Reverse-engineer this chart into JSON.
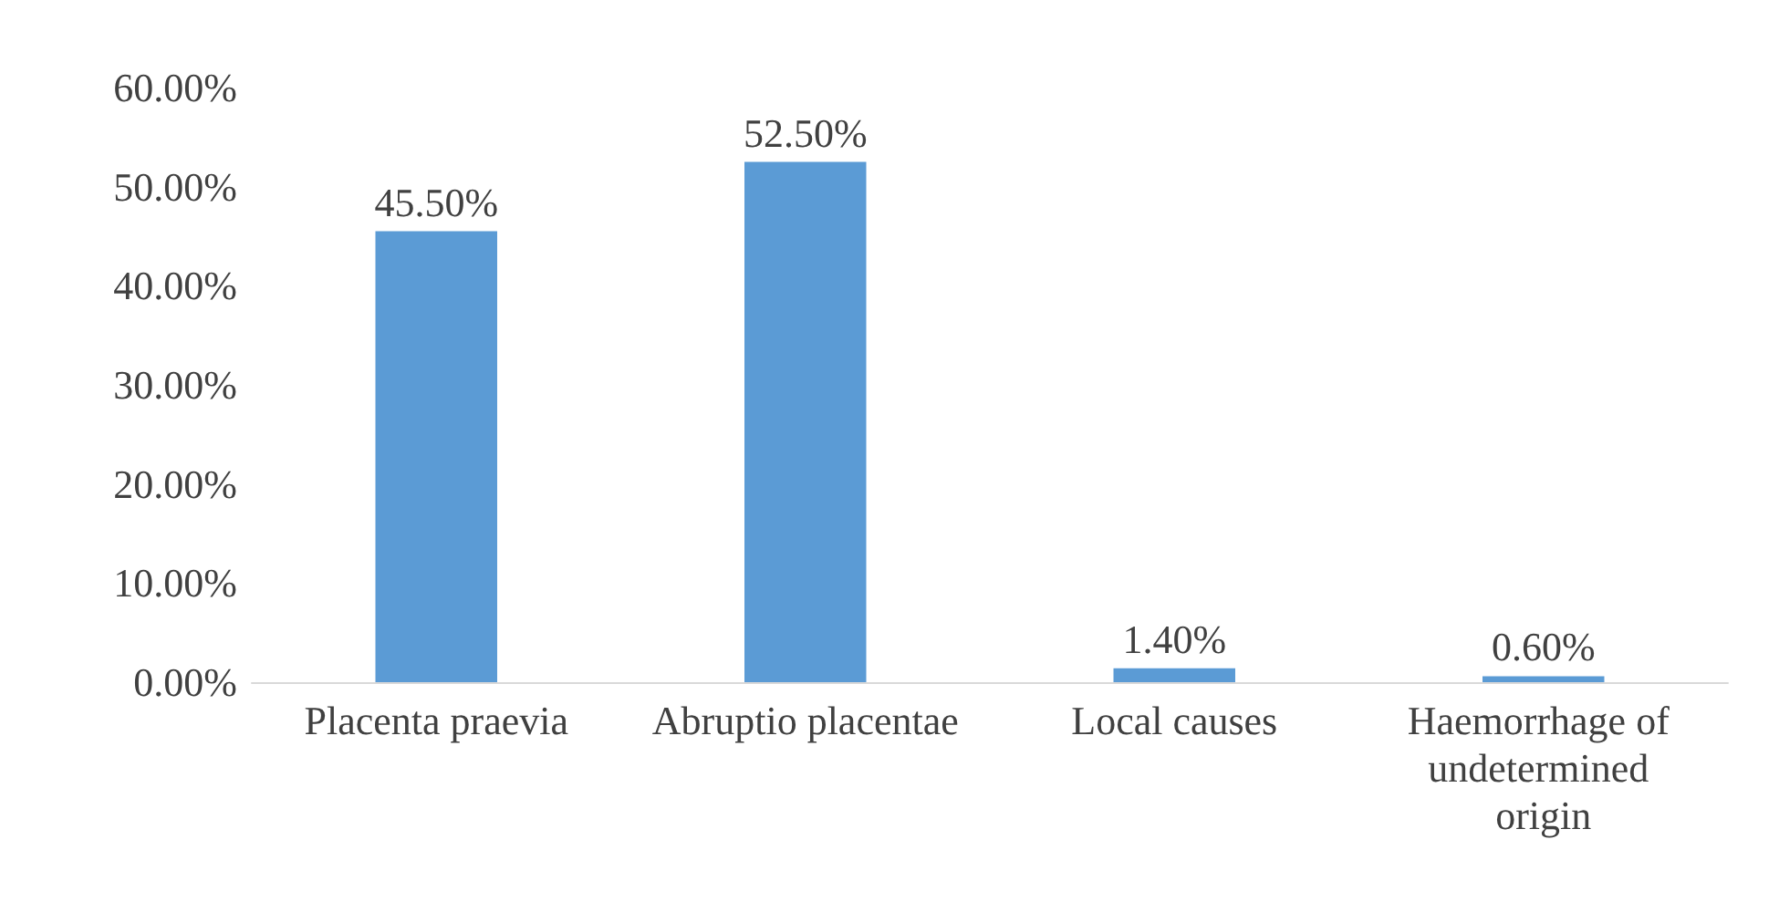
{
  "chart_data": {
    "type": "bar",
    "categories": [
      "Placenta praevia",
      "Abruptio placentae",
      "Local causes",
      "Haemorrhage of undetermined origin"
    ],
    "values": [
      45.5,
      52.5,
      1.4,
      0.6
    ],
    "color": "#5b9bd5",
    "value_labels": [
      "45.50%",
      "52.50%",
      "1.40%",
      "0.60%"
    ],
    "ylim": [
      0,
      60
    ],
    "yticks": [
      {
        "value": 0,
        "label": "0.00%"
      },
      {
        "value": 10,
        "label": "10.00%"
      },
      {
        "value": 20,
        "label": "20.00%"
      },
      {
        "value": 30,
        "label": "30.00%"
      },
      {
        "value": 40,
        "label": "40.00%"
      },
      {
        "value": 50,
        "label": "50.00%"
      },
      {
        "value": 60,
        "label": "60.00%"
      }
    ]
  }
}
